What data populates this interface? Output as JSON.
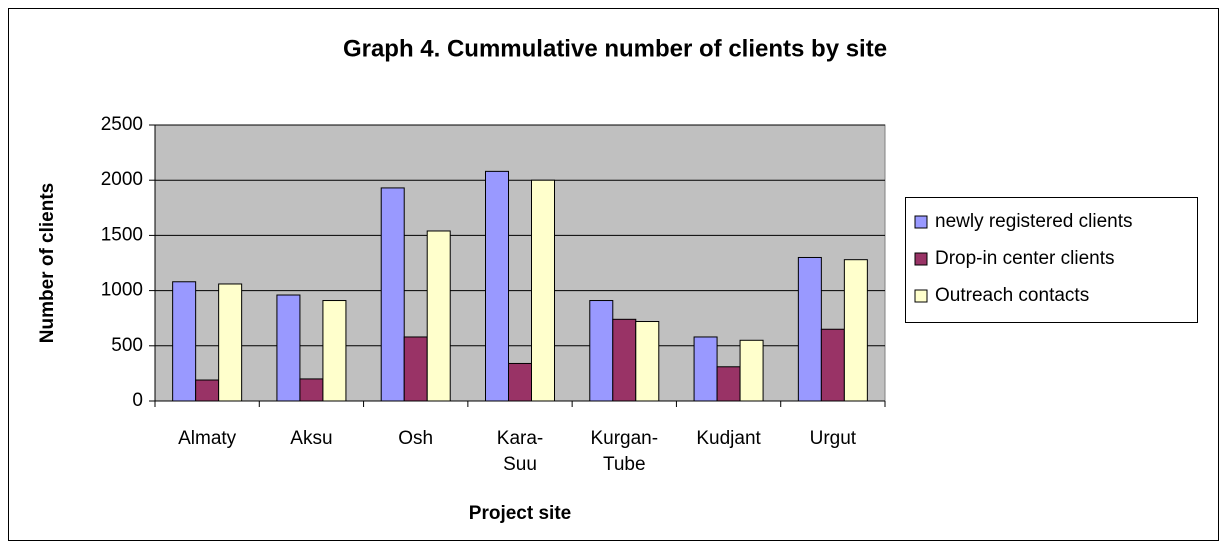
{
  "chart_data": {
    "type": "bar",
    "title": "Graph 4. Cummulative number of clients by site",
    "xlabel": "Project site",
    "ylabel": "Number of clients",
    "categories": [
      "Almaty",
      "Aksu",
      "Osh",
      "Kara-Suu",
      "Kurgan-Tube",
      "Kudjant",
      "Urgut"
    ],
    "series": [
      {
        "name": "newly registered clients",
        "color": "#9999ff",
        "values": [
          1080,
          960,
          1930,
          2080,
          910,
          580,
          1300
        ]
      },
      {
        "name": "Drop-in center clients",
        "color": "#993366",
        "values": [
          190,
          200,
          580,
          340,
          740,
          310,
          650
        ]
      },
      {
        "name": "Outreach contacts",
        "color": "#ffffcc",
        "values": [
          1060,
          910,
          1540,
          2000,
          720,
          550,
          1280
        ]
      }
    ],
    "ylim": [
      0,
      2500
    ],
    "yticks": [
      0,
      500,
      1000,
      1500,
      2000,
      2500
    ],
    "grid": true,
    "legend": "right",
    "plot_background": "#c0c0c0"
  }
}
